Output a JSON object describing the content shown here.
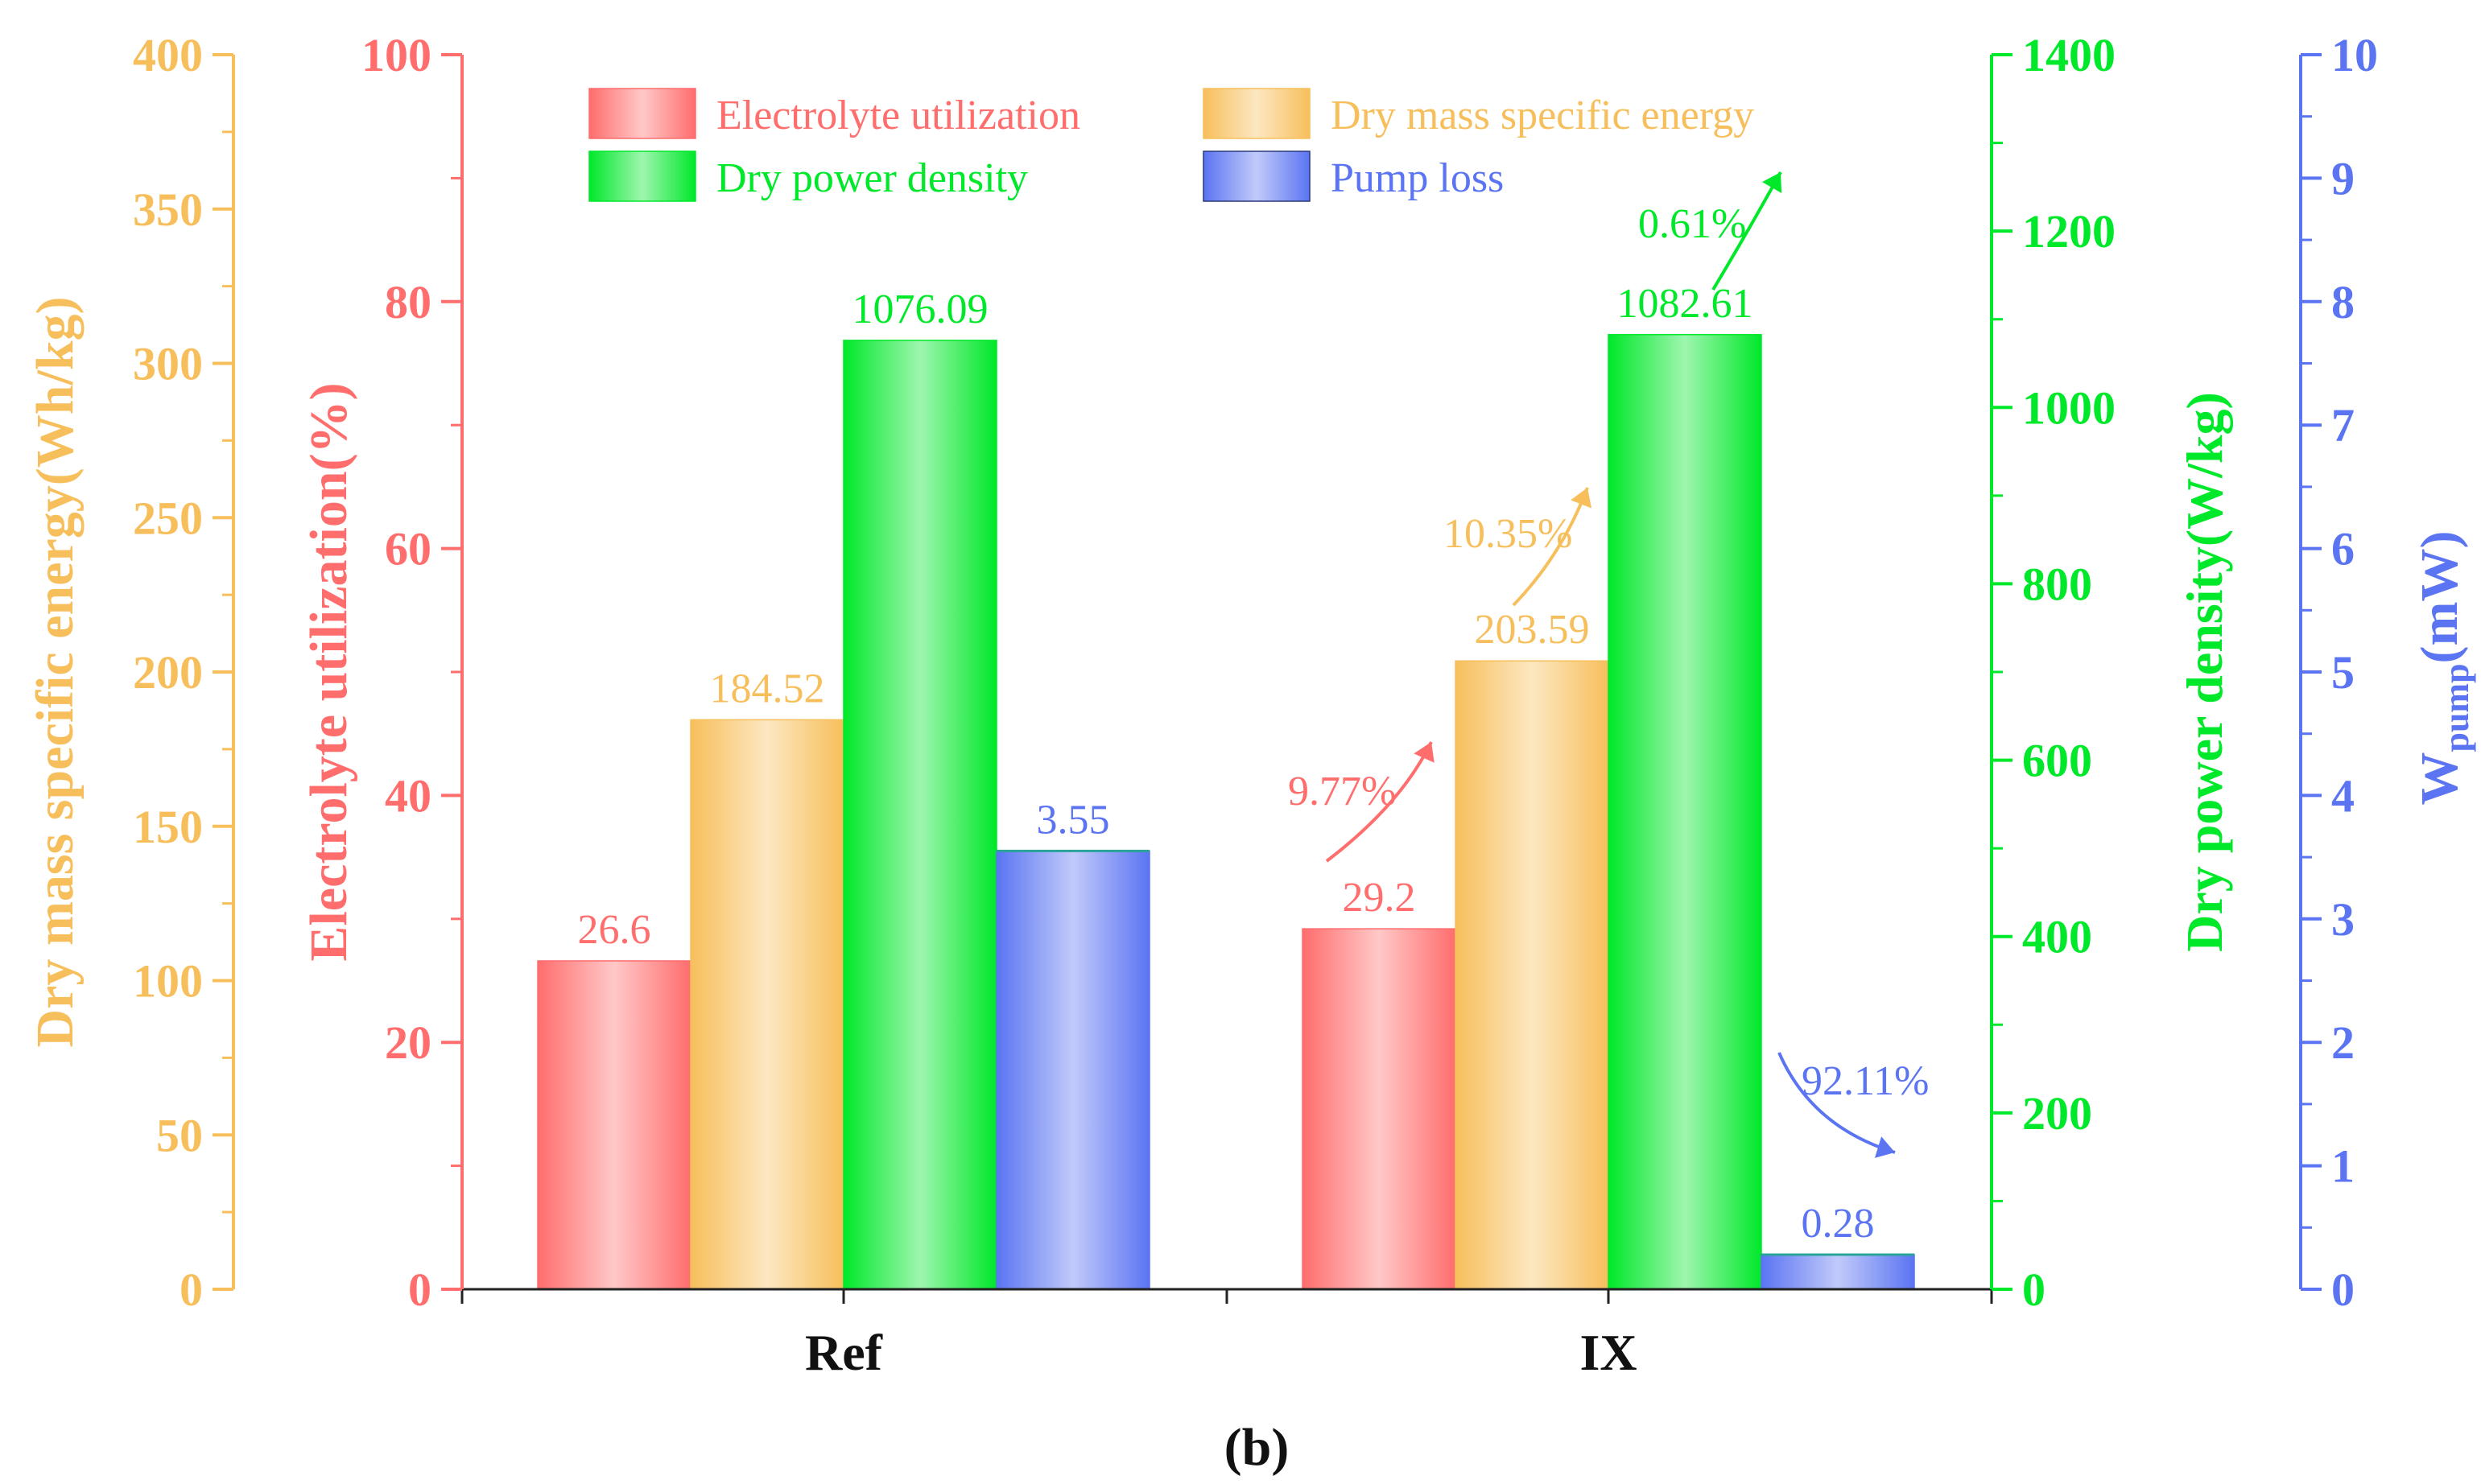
{
  "colors": {
    "electrolyte": "#ff6d6d",
    "dry_energy": "#f7bf5c",
    "dry_power": "#00e82a",
    "pump": "#5b74f2",
    "axis_dark": "#222222"
  },
  "chart_data": {
    "type": "bar",
    "categories": [
      "Ref",
      "IX"
    ],
    "caption": "(b)",
    "series": [
      {
        "key": "electrolyte",
        "name": "Electrolyte utilization",
        "values": [
          26.6,
          29.2
        ],
        "labels": [
          "26.6",
          "29.2"
        ],
        "axis": "y_electrolyte",
        "color": "#ff6d6d"
      },
      {
        "key": "dry_energy",
        "name": "Dry mass specific energy",
        "values": [
          184.52,
          203.59
        ],
        "labels": [
          "184.52",
          "203.59"
        ],
        "axis": "y_energy",
        "color": "#f7bf5c"
      },
      {
        "key": "dry_power",
        "name": "Dry power density",
        "values": [
          1076.09,
          1082.61
        ],
        "labels": [
          "1076.09",
          "1082.61"
        ],
        "axis": "y_power",
        "color": "#00e82a"
      },
      {
        "key": "pump",
        "name": "Pump loss",
        "values": [
          3.55,
          0.28
        ],
        "labels": [
          "3.55",
          "0.28"
        ],
        "axis": "y_pump",
        "color": "#5b74f2"
      }
    ],
    "axes": {
      "y_energy": {
        "label": "Dry mass specific energy(Wh/kg)",
        "range": [
          0,
          400
        ],
        "ticks": [
          0,
          50,
          100,
          150,
          200,
          250,
          300,
          350,
          400
        ],
        "side": "left-outer"
      },
      "y_electrolyte": {
        "label": "Electrolyte utilization(%)",
        "range": [
          0,
          100
        ],
        "ticks": [
          0,
          20,
          40,
          60,
          80,
          100
        ],
        "side": "left-inner"
      },
      "y_power": {
        "label": "Dry power density(W/kg)",
        "range": [
          0,
          1400
        ],
        "ticks": [
          0,
          200,
          400,
          600,
          800,
          1000,
          1200,
          1400
        ],
        "side": "right-inner"
      },
      "y_pump": {
        "label_main": "W",
        "label_sub": "pump",
        "label_unit": "(mW)",
        "range": [
          0,
          10
        ],
        "ticks": [
          0,
          1,
          2,
          3,
          4,
          5,
          6,
          7,
          8,
          9,
          10
        ],
        "side": "right-outer"
      }
    },
    "annotations": [
      {
        "series": "electrolyte",
        "text": "9.77%",
        "direction": "up"
      },
      {
        "series": "dry_energy",
        "text": "10.35%",
        "direction": "up"
      },
      {
        "series": "dry_power",
        "text": "0.61%",
        "direction": "up"
      },
      {
        "series": "pump",
        "text": "92.11%",
        "direction": "down"
      }
    ],
    "legend": {
      "placement": "top-center",
      "entries": [
        "Electrolyte utilization",
        "Dry mass specific energy",
        "Dry power density",
        "Pump loss"
      ]
    }
  }
}
